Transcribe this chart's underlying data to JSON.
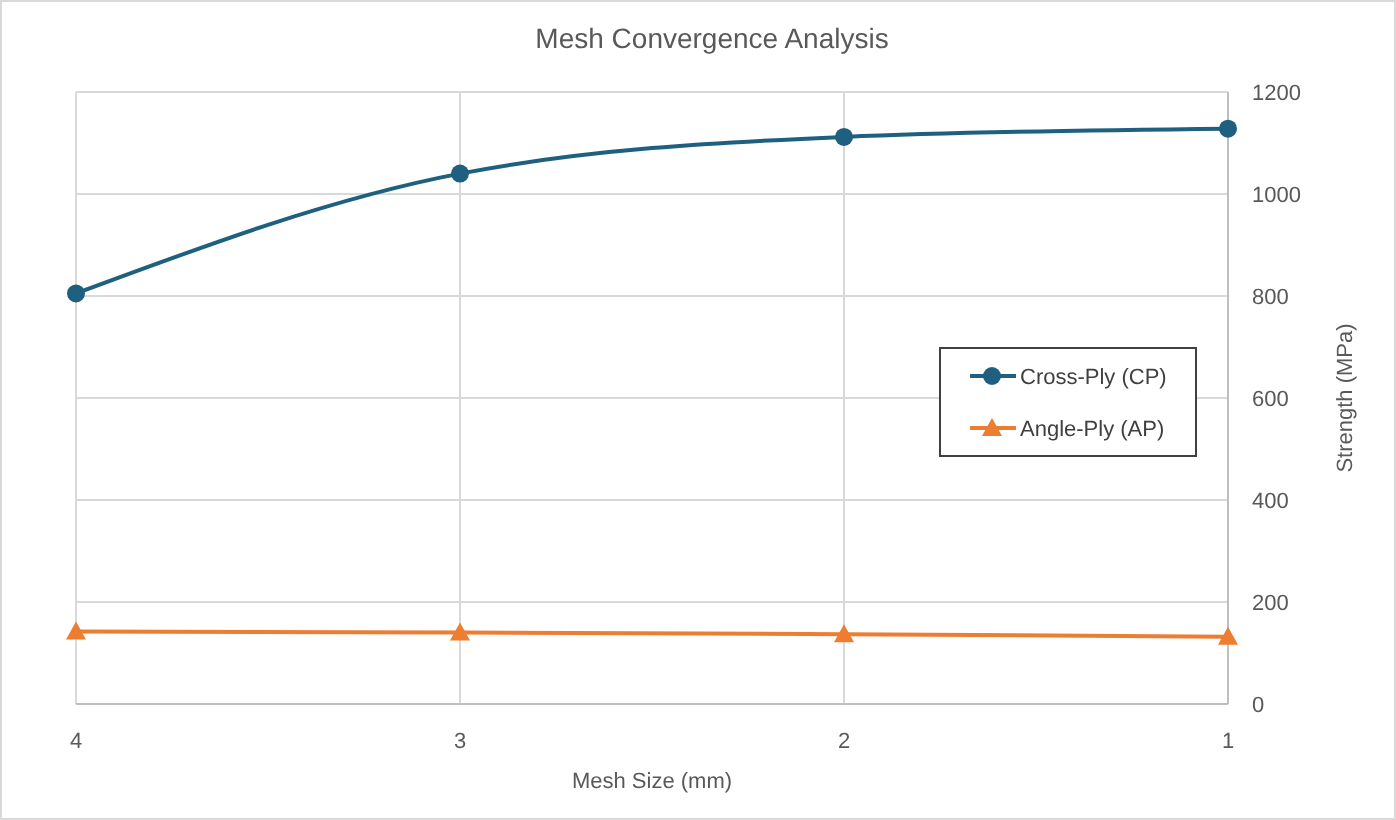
{
  "chart_data": {
    "type": "line",
    "title": "Mesh Convergence Analysis",
    "xlabel": "Mesh Size (mm)",
    "ylabel": "Strength (MPa)",
    "x": [
      4,
      3,
      2,
      1
    ],
    "xlim": [
      4,
      1
    ],
    "xticks": [
      4,
      3,
      2,
      1
    ],
    "ylim": [
      0,
      1200
    ],
    "yticks": [
      0,
      200,
      400,
      600,
      800,
      1000,
      1200
    ],
    "grid": true,
    "legend": "right",
    "series": [
      {
        "name": "Cross-Ply (CP)",
        "color": "#1f5f7f",
        "marker": "circle",
        "values": [
          805,
          1040,
          1112,
          1128
        ]
      },
      {
        "name": "Angle-Ply (AP)",
        "color": "#ed7d31",
        "marker": "triangle",
        "values": [
          142,
          140,
          137,
          132
        ]
      }
    ]
  }
}
